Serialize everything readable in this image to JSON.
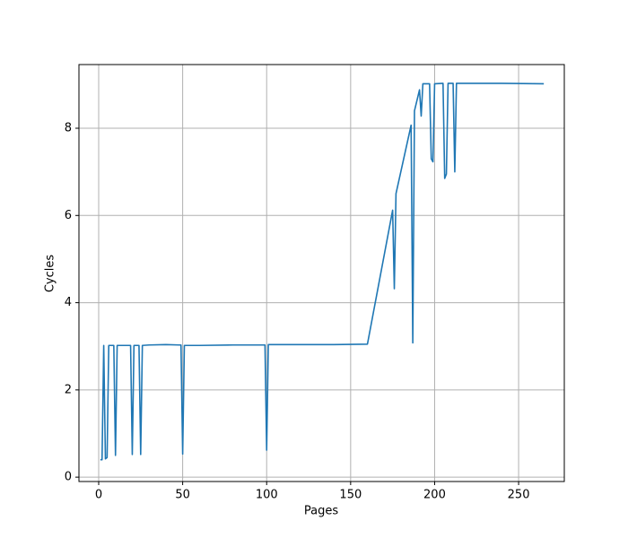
{
  "chart_data": {
    "type": "line",
    "x_label": "Pages",
    "y_label": "Cycles",
    "color": "#1f77b4",
    "grid": true,
    "x": [
      1,
      2,
      3,
      4,
      5,
      6,
      9,
      10,
      11,
      19,
      20,
      21,
      24,
      25,
      26,
      30,
      40,
      48,
      49,
      50,
      51,
      60,
      80,
      99,
      100,
      101,
      120,
      140,
      160,
      175,
      176,
      177,
      186,
      187,
      188,
      191,
      192,
      193,
      197,
      198,
      199,
      200,
      205,
      206,
      207,
      208,
      211,
      212,
      213,
      230,
      240,
      265
    ],
    "values": [
      0.4,
      0.4,
      3.02,
      0.42,
      0.45,
      3.02,
      3.02,
      0.5,
      3.02,
      3.02,
      0.52,
      3.02,
      3.02,
      0.52,
      3.02,
      3.03,
      3.04,
      3.03,
      3.03,
      0.53,
      3.02,
      3.02,
      3.03,
      3.03,
      0.62,
      3.04,
      3.04,
      3.04,
      3.05,
      6.12,
      4.32,
      6.5,
      8.07,
      3.08,
      8.4,
      8.88,
      8.28,
      9.02,
      9.02,
      7.3,
      7.23,
      9.02,
      9.03,
      6.85,
      6.95,
      9.03,
      9.03,
      7.0,
      9.03,
      9.03,
      9.03,
      9.02
    ],
    "xlim": [
      -11.75,
      277.2
    ],
    "ylim": [
      -0.1,
      9.46
    ],
    "xticks": [
      0,
      50,
      100,
      150,
      200,
      250
    ],
    "yticks": [
      0,
      2,
      4,
      6,
      8
    ]
  }
}
